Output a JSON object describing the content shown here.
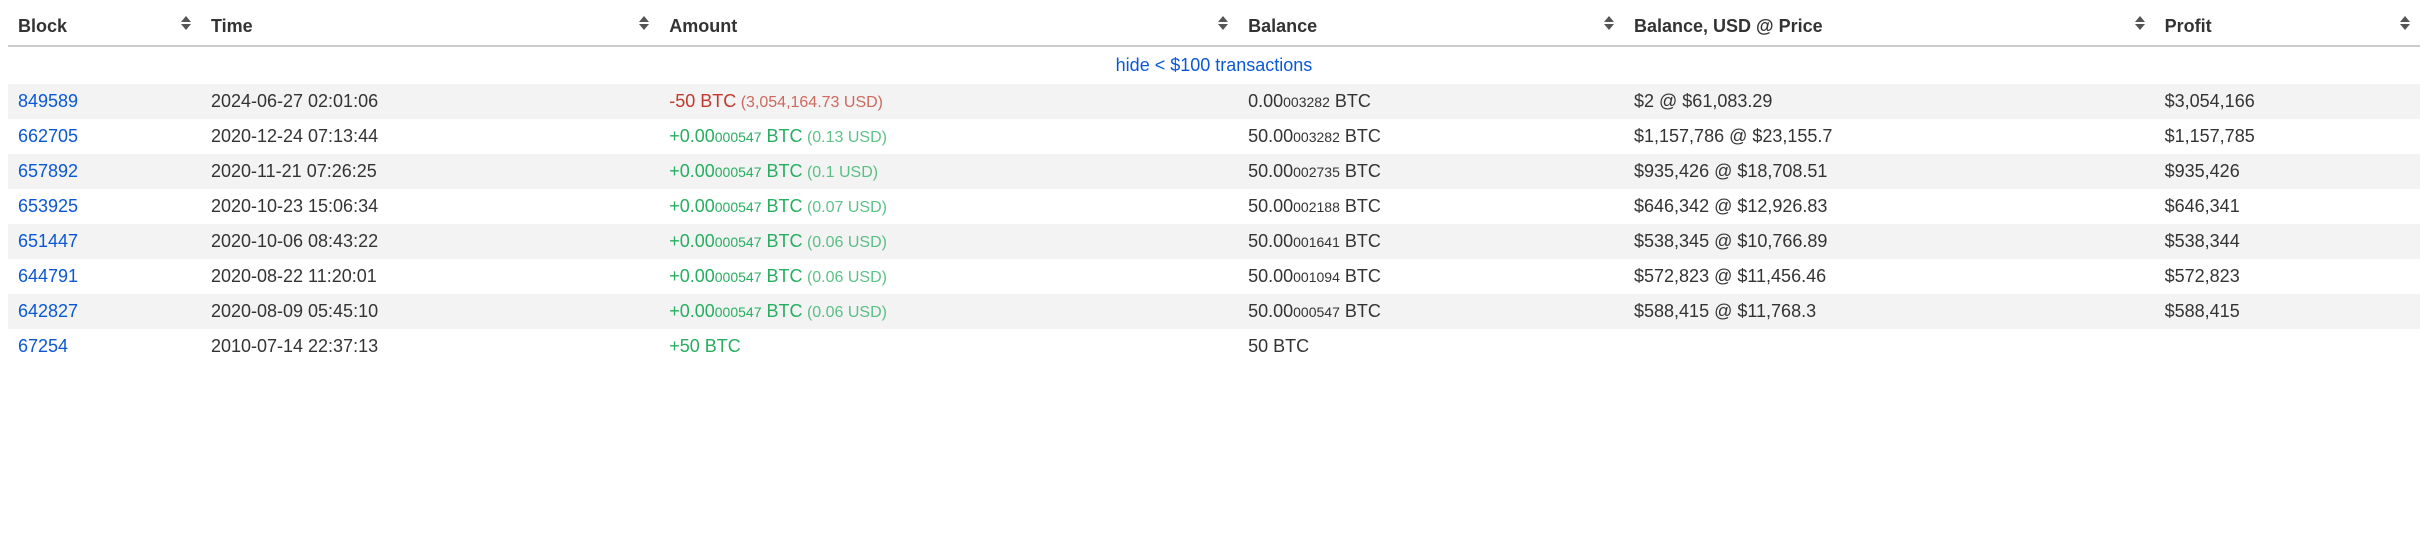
{
  "columns": [
    {
      "key": "block",
      "label": "Block",
      "class": "col-block"
    },
    {
      "key": "time",
      "label": "Time",
      "class": "col-time"
    },
    {
      "key": "amount",
      "label": "Amount",
      "class": "col-amount"
    },
    {
      "key": "balance",
      "label": "Balance",
      "class": "col-balance"
    },
    {
      "key": "balusd",
      "label": "Balance, USD @ Price",
      "class": "col-balusd"
    },
    {
      "key": "profit",
      "label": "Profit",
      "class": "col-profit"
    }
  ],
  "hide_link": "hide < $100 transactions",
  "colors": {
    "link": "#0b58d4",
    "positive": "#27ae60",
    "negative": "#c0392b",
    "row_stripe": "#f3f3f3",
    "header_border": "#cccccc"
  },
  "rows": [
    {
      "block": "849589",
      "time": "2024-06-27 02:01:06",
      "amount_main": "-50",
      "amount_small": "",
      "amount_unit": " BTC",
      "amount_usd": " (3,054,164.73 USD)",
      "amount_sign": "neg",
      "balance_main": "0.00",
      "balance_small": "003282",
      "balance_unit": " BTC",
      "balusd": "$2 @ $61,083.29",
      "profit": "$3,054,166"
    },
    {
      "block": "662705",
      "time": "2020-12-24 07:13:44",
      "amount_main": "+0.00",
      "amount_small": "000547",
      "amount_unit": " BTC",
      "amount_usd": " (0.13 USD)",
      "amount_sign": "pos",
      "balance_main": "50.00",
      "balance_small": "003282",
      "balance_unit": " BTC",
      "balusd": "$1,157,786 @ $23,155.7",
      "profit": "$1,157,785"
    },
    {
      "block": "657892",
      "time": "2020-11-21 07:26:25",
      "amount_main": "+0.00",
      "amount_small": "000547",
      "amount_unit": " BTC",
      "amount_usd": " (0.1 USD)",
      "amount_sign": "pos",
      "balance_main": "50.00",
      "balance_small": "002735",
      "balance_unit": " BTC",
      "balusd": "$935,426 @ $18,708.51",
      "profit": "$935,426"
    },
    {
      "block": "653925",
      "time": "2020-10-23 15:06:34",
      "amount_main": "+0.00",
      "amount_small": "000547",
      "amount_unit": " BTC",
      "amount_usd": " (0.07 USD)",
      "amount_sign": "pos",
      "balance_main": "50.00",
      "balance_small": "002188",
      "balance_unit": " BTC",
      "balusd": "$646,342 @ $12,926.83",
      "profit": "$646,341"
    },
    {
      "block": "651447",
      "time": "2020-10-06 08:43:22",
      "amount_main": "+0.00",
      "amount_small": "000547",
      "amount_unit": " BTC",
      "amount_usd": " (0.06 USD)",
      "amount_sign": "pos",
      "balance_main": "50.00",
      "balance_small": "001641",
      "balance_unit": " BTC",
      "balusd": "$538,345 @ $10,766.89",
      "profit": "$538,344"
    },
    {
      "block": "644791",
      "time": "2020-08-22 11:20:01",
      "amount_main": "+0.00",
      "amount_small": "000547",
      "amount_unit": " BTC",
      "amount_usd": " (0.06 USD)",
      "amount_sign": "pos",
      "balance_main": "50.00",
      "balance_small": "001094",
      "balance_unit": " BTC",
      "balusd": "$572,823 @ $11,456.46",
      "profit": "$572,823"
    },
    {
      "block": "642827",
      "time": "2020-08-09 05:45:10",
      "amount_main": "+0.00",
      "amount_small": "000547",
      "amount_unit": " BTC",
      "amount_usd": " (0.06 USD)",
      "amount_sign": "pos",
      "balance_main": "50.00",
      "balance_small": "000547",
      "balance_unit": " BTC",
      "balusd": "$588,415 @ $11,768.3",
      "profit": "$588,415"
    },
    {
      "block": "67254",
      "time": "2010-07-14 22:37:13",
      "amount_main": "+50",
      "amount_small": "",
      "amount_unit": " BTC",
      "amount_usd": "",
      "amount_sign": "pos",
      "balance_main": "50",
      "balance_small": "",
      "balance_unit": " BTC",
      "balusd": "",
      "profit": ""
    }
  ]
}
